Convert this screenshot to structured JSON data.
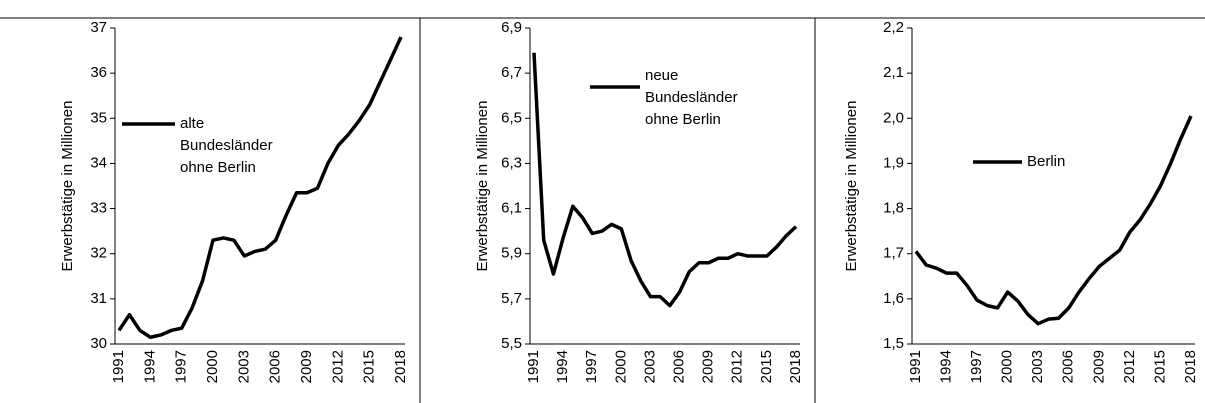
{
  "chart_data": [
    {
      "type": "line",
      "ylabel": "Erwerbstätige in Millionen",
      "categories": [
        "1991",
        null,
        null,
        "1994",
        null,
        null,
        "1997",
        null,
        null,
        "2000",
        null,
        null,
        "2003",
        null,
        null,
        "2006",
        null,
        null,
        "2009",
        null,
        null,
        "2012",
        null,
        null,
        "2015",
        null,
        null,
        "2018"
      ],
      "series": [
        {
          "name": "alte Bundesländer ohne Berlin",
          "color": "#000000",
          "values": [
            30.3,
            30.65,
            30.3,
            30.15,
            30.2,
            30.3,
            30.35,
            30.8,
            31.4,
            32.3,
            32.35,
            32.3,
            31.95,
            32.05,
            32.1,
            32.3,
            32.85,
            33.35,
            33.35,
            33.45,
            34.0,
            34.4,
            34.65,
            34.95,
            35.3,
            35.8,
            36.3,
            36.8
          ]
        }
      ],
      "ylim": [
        30,
        37
      ],
      "yticks": [
        30,
        31,
        32,
        33,
        34,
        35,
        36,
        37
      ]
    },
    {
      "type": "line",
      "ylabel": "Erwerbstätige in Millionen",
      "categories": [
        "1991",
        null,
        null,
        "1994",
        null,
        null,
        "1997",
        null,
        null,
        "2000",
        null,
        null,
        "2003",
        null,
        null,
        "2006",
        null,
        null,
        "2009",
        null,
        null,
        "2012",
        null,
        null,
        "2015",
        null,
        null,
        "2018"
      ],
      "series": [
        {
          "name": "neue Bundesländer ohne Berlin",
          "color": "#000000",
          "values": [
            6.79,
            5.96,
            5.81,
            5.97,
            6.11,
            6.06,
            5.99,
            6.0,
            6.03,
            6.01,
            5.87,
            5.78,
            5.71,
            5.71,
            5.67,
            5.73,
            5.82,
            5.86,
            5.86,
            5.88,
            5.88,
            5.9,
            5.89,
            5.89,
            5.89,
            5.93,
            5.98,
            6.02
          ]
        }
      ],
      "ylim": [
        5.5,
        6.9
      ],
      "yticks": [
        {
          "value": 5.5,
          "label": "5,5"
        },
        {
          "value": 5.7,
          "label": "5,7"
        },
        {
          "value": 5.9,
          "label": "5,9"
        },
        {
          "value": 6.1,
          "label": "6,1"
        },
        {
          "value": 6.3,
          "label": "6,3"
        },
        {
          "value": 6.5,
          "label": "6,5"
        },
        {
          "value": 6.7,
          "label": "6,7"
        },
        {
          "value": 6.9,
          "label": "6,9"
        }
      ]
    },
    {
      "type": "line",
      "ylabel": "Erwerbstätige in Millionen",
      "categories": [
        "1991",
        null,
        null,
        "1994",
        null,
        null,
        "1997",
        null,
        null,
        "2000",
        null,
        null,
        "2003",
        null,
        null,
        "2006",
        null,
        null,
        "2009",
        null,
        null,
        "2012",
        null,
        null,
        "2015",
        null,
        null,
        "2018"
      ],
      "series": [
        {
          "name": "Berlin",
          "color": "#000000",
          "values": [
            1.705,
            1.675,
            1.668,
            1.657,
            1.657,
            1.63,
            1.597,
            1.585,
            1.58,
            1.615,
            1.595,
            1.565,
            1.545,
            1.555,
            1.557,
            1.58,
            1.615,
            1.645,
            1.672,
            1.69,
            1.708,
            1.748,
            1.775,
            1.81,
            1.85,
            1.9,
            1.955,
            2.005
          ]
        }
      ],
      "ylim": [
        1.5,
        2.2
      ],
      "yticks": [
        {
          "value": 1.5,
          "label": "1,5"
        },
        {
          "value": 1.6,
          "label": "1,6"
        },
        {
          "value": 1.7,
          "label": "1,7"
        },
        {
          "value": 1.8,
          "label": "1,8"
        },
        {
          "value": 1.9,
          "label": "1,9"
        },
        {
          "value": 2.0,
          "label": "2,0"
        },
        {
          "value": 2.1,
          "label": "2,1"
        },
        {
          "value": 2.2,
          "label": "2,2"
        }
      ]
    }
  ]
}
